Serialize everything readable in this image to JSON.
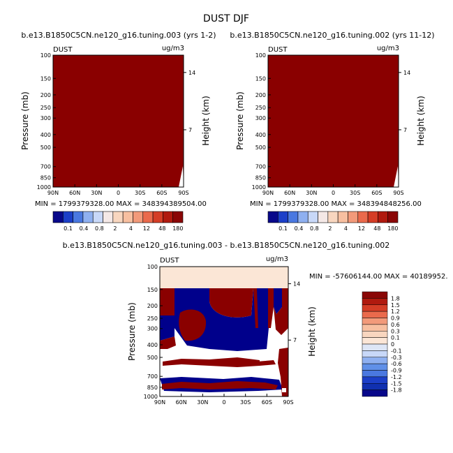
{
  "title": "DUST DJF",
  "chart_data": [
    {
      "type": "heatmap",
      "title": "b.e13.B1850C5CN.ne120_g16.tuning.003 (yrs 1-2)",
      "left_label": "DUST",
      "right_label": "ug/m3",
      "xlabel": "",
      "ylabel": "Pressure (mb)",
      "y2label": "Height (km)",
      "x_ticks": [
        "90N",
        "60N",
        "30N",
        "0",
        "30S",
        "60S",
        "90S"
      ],
      "y_ticks": [
        100,
        150,
        200,
        250,
        300,
        400,
        500,
        700,
        850,
        1000
      ],
      "y2_ticks": [
        14,
        7
      ],
      "ylim": [
        1000,
        100
      ],
      "stats": "MIN = 1799379328.00   MAX = 348394389504.00",
      "fill_level": "180"
    },
    {
      "type": "heatmap",
      "title": "b.e13.B1850C5CN.ne120_g16.tuning.002 (yrs 11-12)",
      "left_label": "DUST",
      "right_label": "ug/m3",
      "xlabel": "",
      "ylabel": "Pressure (mb)",
      "y2label": "Height (km)",
      "x_ticks": [
        "90N",
        "60N",
        "30N",
        "0",
        "30S",
        "60S",
        "90S"
      ],
      "y_ticks": [
        100,
        150,
        200,
        250,
        300,
        400,
        500,
        700,
        850,
        1000
      ],
      "y2_ticks": [
        14,
        7
      ],
      "ylim": [
        1000,
        100
      ],
      "stats": "MIN = 1799379328.00   MAX = 348394848256.00",
      "fill_level": "180"
    },
    {
      "type": "heatmap",
      "title": "b.e13.B1850C5CN.ne120_g16.tuning.003 - b.e13.B1850C5CN.ne120_g16.tuning.002",
      "left_label": "DUST",
      "right_label": "ug/m3",
      "xlabel": "",
      "ylabel": "Pressure (mb)",
      "y2label": "Height (km)",
      "x_ticks": [
        "90N",
        "60N",
        "30N",
        "0",
        "30S",
        "60S",
        "90S"
      ],
      "y_ticks": [
        100,
        150,
        200,
        250,
        300,
        400,
        500,
        700,
        850,
        1000
      ],
      "y2_ticks": [
        14,
        7
      ],
      "ylim": [
        1000,
        100
      ],
      "stats": "MIN = -57606144.00   MAX = 40189952."
    }
  ],
  "colorbar_top": {
    "labels": [
      "0.1",
      "0.4",
      "0.8",
      "2",
      "4",
      "12",
      "48",
      "180"
    ],
    "colors": [
      "#08088a",
      "#1c3fc8",
      "#4a78e0",
      "#8fb0f0",
      "#c8d8f8",
      "#f4e8e6",
      "#f8d6bf",
      "#f7bfa0",
      "#f29a7a",
      "#ea6a4c",
      "#d43d26",
      "#b01a0f",
      "#8a0606"
    ]
  },
  "colorbar_diff": {
    "labels": [
      "1.8",
      "1.5",
      "1.2",
      "0.9",
      "0.6",
      "0.3",
      "0.1",
      "0",
      "-0.1",
      "-0.3",
      "-0.6",
      "-0.9",
      "-1.2",
      "-1.5",
      "-1.8"
    ],
    "colors": [
      "#8a0606",
      "#b01a0f",
      "#d43d26",
      "#ea6a4c",
      "#f29a7a",
      "#f7bfa0",
      "#f8d6bf",
      "#fbe6d6",
      "#dde6f6",
      "#c8d8f8",
      "#8fb0f0",
      "#6090e8",
      "#4a78e0",
      "#1c3fc8",
      "#1030b0",
      "#08088a"
    ]
  },
  "colors": {
    "dark_red": "#8a0000",
    "dark_blue": "#00008b",
    "light_peach": "#fbe6d6",
    "white": "#ffffff"
  }
}
